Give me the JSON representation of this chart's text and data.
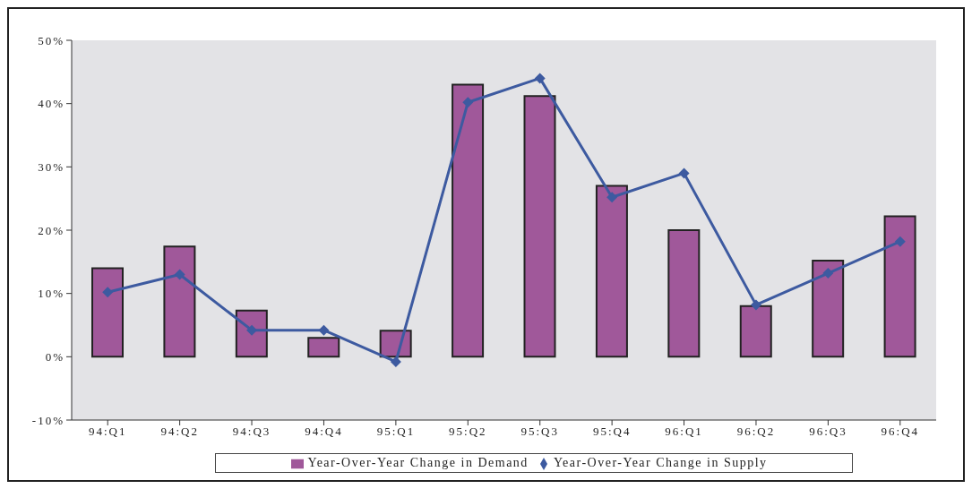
{
  "chart_data": {
    "type": "bar",
    "categories": [
      "94:Q1",
      "94:Q2",
      "94:Q3",
      "94:Q4",
      "95:Q1",
      "95:Q2",
      "95:Q3",
      "95:Q4",
      "96:Q1",
      "96:Q2",
      "96:Q3",
      "96:Q4"
    ],
    "series": [
      {
        "name": "Year-Over-Year Change in Demand",
        "color": "#a0589a",
        "values": [
          14.0,
          17.4,
          7.3,
          3.0,
          4.1,
          43.0,
          41.2,
          27.0,
          20.0,
          8.0,
          15.2,
          22.2
        ]
      },
      {
        "name": "Year-Over-Year Change in Supply",
        "type": "line",
        "color": "#3d5aa0",
        "marker": "diamond",
        "values": [
          10.2,
          13.0,
          4.2,
          4.2,
          -0.8,
          40.2,
          44.0,
          25.2,
          29.0,
          8.2,
          13.2,
          18.2
        ]
      }
    ],
    "ylim": [
      -10,
      50
    ],
    "yticks": [
      {
        "value": -10,
        "label": "-10%"
      },
      {
        "value": 0,
        "label": "0%"
      },
      {
        "value": 10,
        "label": "10%"
      },
      {
        "value": 20,
        "label": "20%"
      },
      {
        "value": 30,
        "label": "30%"
      },
      {
        "value": 40,
        "label": "40%"
      },
      {
        "value": 50,
        "label": "50%"
      }
    ],
    "grid": false,
    "legend": "bottom"
  }
}
